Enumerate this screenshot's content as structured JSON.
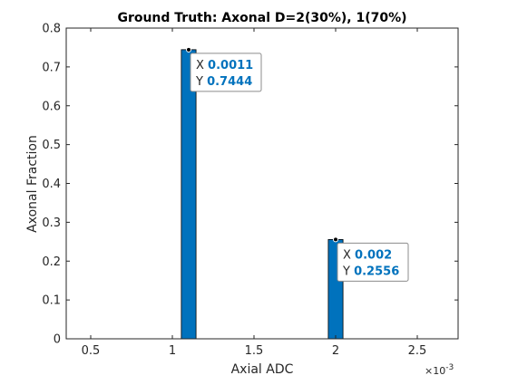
{
  "chart_data": {
    "type": "bar",
    "title": "Ground Truth: Axonal D=2(30%), 1(70%)",
    "xlabel": "Axial ADC",
    "ylabel": "Axonal Fraction",
    "x_exponent_label": "×10",
    "x_exponent_power": "-3",
    "xlim": [
      0.35,
      2.75
    ],
    "ylim": [
      0,
      0.8
    ],
    "xticks": [
      0.5,
      1,
      1.5,
      2,
      2.5
    ],
    "xtick_labels": [
      "0.5",
      "1",
      "1.5",
      "2",
      "2.5"
    ],
    "yticks": [
      0,
      0.1,
      0.2,
      0.3,
      0.4,
      0.5,
      0.6,
      0.7,
      0.8
    ],
    "ytick_labels": [
      "0",
      "0.1",
      "0.2",
      "0.3",
      "0.4",
      "0.5",
      "0.6",
      "0.7",
      "0.8"
    ],
    "bar_width": 0.09,
    "bar_color": "#0072bd",
    "grid": false,
    "bars": [
      {
        "x": 1.1,
        "y": 0.7444
      },
      {
        "x": 2.0,
        "y": 0.2556
      }
    ],
    "datatips": [
      {
        "x": 1.1,
        "y": 0.7444,
        "x_key": "X",
        "y_key": "Y",
        "x_text": "0.0011",
        "y_text": "0.7444"
      },
      {
        "x": 2.0,
        "y": 0.2556,
        "x_key": "X",
        "y_key": "Y",
        "x_text": "0.002",
        "y_text": "0.2556"
      }
    ]
  }
}
